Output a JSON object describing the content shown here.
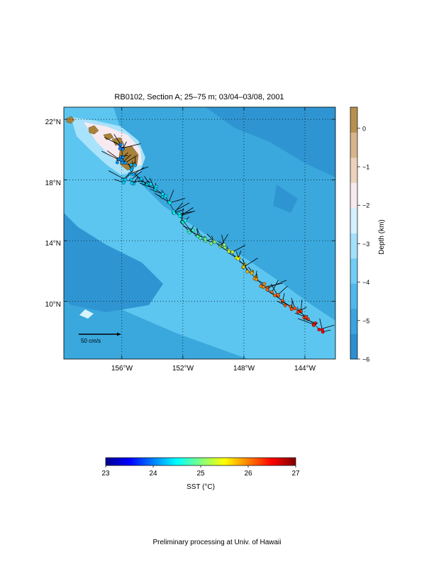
{
  "map": {
    "title": "RB0102, Section A; 25–75 m; 03/04–03/08, 2001",
    "lat_labels": [
      "22°N",
      "18°N",
      "14°N",
      "10°N"
    ],
    "lon_labels": [
      "156°W",
      "152°W",
      "148°W",
      "144°W"
    ],
    "lat_values": [
      22,
      18,
      14,
      10
    ],
    "lon_values": [
      -156,
      -152,
      -148,
      -144
    ],
    "extent": {
      "lon_min": -159.8,
      "lon_max": -142.0,
      "lat_min": 6.2,
      "lat_max": 22.8
    },
    "scale_label": "50 cm/s",
    "scale_color": "#e000e0",
    "ocean_color": "#3aa8dd",
    "shallow_color": "#5cc6f0",
    "land_color": "#a8823a"
  },
  "depth_colorbar": {
    "label": "Depth (km)",
    "ticks": [
      "0",
      "−1",
      "−2",
      "−3",
      "−4",
      "−5",
      "−6"
    ],
    "tick_values": [
      0,
      -1,
      -2,
      -3,
      -4,
      -5,
      -6
    ],
    "range": [
      -6,
      0.55
    ],
    "colors": [
      "#2c8fd0",
      "#3aa4de",
      "#4fb8ec",
      "#72cdf6",
      "#a3e0fb",
      "#d5f1fd",
      "#f6e9ef",
      "#ecd2bc",
      "#d8b48b",
      "#b7904f"
    ]
  },
  "sst_colorbar": {
    "label": "SST (°C)",
    "ticks": [
      "23",
      "24",
      "25",
      "26",
      "27"
    ],
    "tick_values": [
      23,
      24,
      25,
      26,
      27
    ],
    "range": [
      23,
      27
    ],
    "colors": [
      "#00008f",
      "#0000ff",
      "#0080ff",
      "#00ffff",
      "#80ff80",
      "#ffff00",
      "#ff8000",
      "#ff0000",
      "#800000"
    ]
  },
  "cruise_track": {
    "points": [
      [
        -156.1,
        20.3
      ],
      [
        -156.0,
        19.9
      ],
      [
        -155.9,
        19.5
      ],
      [
        -156.2,
        19.3
      ],
      [
        -155.8,
        19.1
      ],
      [
        -155.3,
        18.9
      ],
      [
        -155.4,
        18.5
      ],
      [
        -155.8,
        18.0
      ],
      [
        -155.2,
        17.9
      ],
      [
        -154.6,
        17.9
      ],
      [
        -154.2,
        17.6
      ],
      [
        -153.8,
        17.4
      ],
      [
        -153.2,
        17.0
      ],
      [
        -152.9,
        16.5
      ],
      [
        -152.6,
        16.0
      ],
      [
        -152.2,
        15.6
      ],
      [
        -151.9,
        15.2
      ],
      [
        -151.5,
        14.7
      ],
      [
        -151.0,
        14.2
      ],
      [
        -150.5,
        14.0
      ],
      [
        -150.0,
        13.9
      ],
      [
        -149.4,
        13.7
      ],
      [
        -148.9,
        13.3
      ],
      [
        -148.5,
        12.9
      ],
      [
        -148.0,
        12.4
      ],
      [
        -147.6,
        11.9
      ],
      [
        -147.2,
        11.5
      ],
      [
        -146.7,
        11.0
      ],
      [
        -146.3,
        10.7
      ],
      [
        -145.8,
        10.3
      ],
      [
        -145.3,
        9.9
      ],
      [
        -144.8,
        9.6
      ],
      [
        -144.3,
        9.3
      ],
      [
        -143.9,
        8.9
      ],
      [
        -143.4,
        8.5
      ],
      [
        -143.0,
        8.1
      ]
    ],
    "sst": [
      24.0,
      24.0,
      24.1,
      24.1,
      24.1,
      24.2,
      24.2,
      24.3,
      24.3,
      24.3,
      24.4,
      24.4,
      24.4,
      24.5,
      24.5,
      24.5,
      24.6,
      24.7,
      24.8,
      24.9,
      25.0,
      25.1,
      25.3,
      25.5,
      25.7,
      25.8,
      25.9,
      26.0,
      26.1,
      26.1,
      26.2,
      26.2,
      26.3,
      26.3,
      26.4,
      26.5
    ]
  },
  "credit": "Preliminary processing at Univ. of Hawaii"
}
